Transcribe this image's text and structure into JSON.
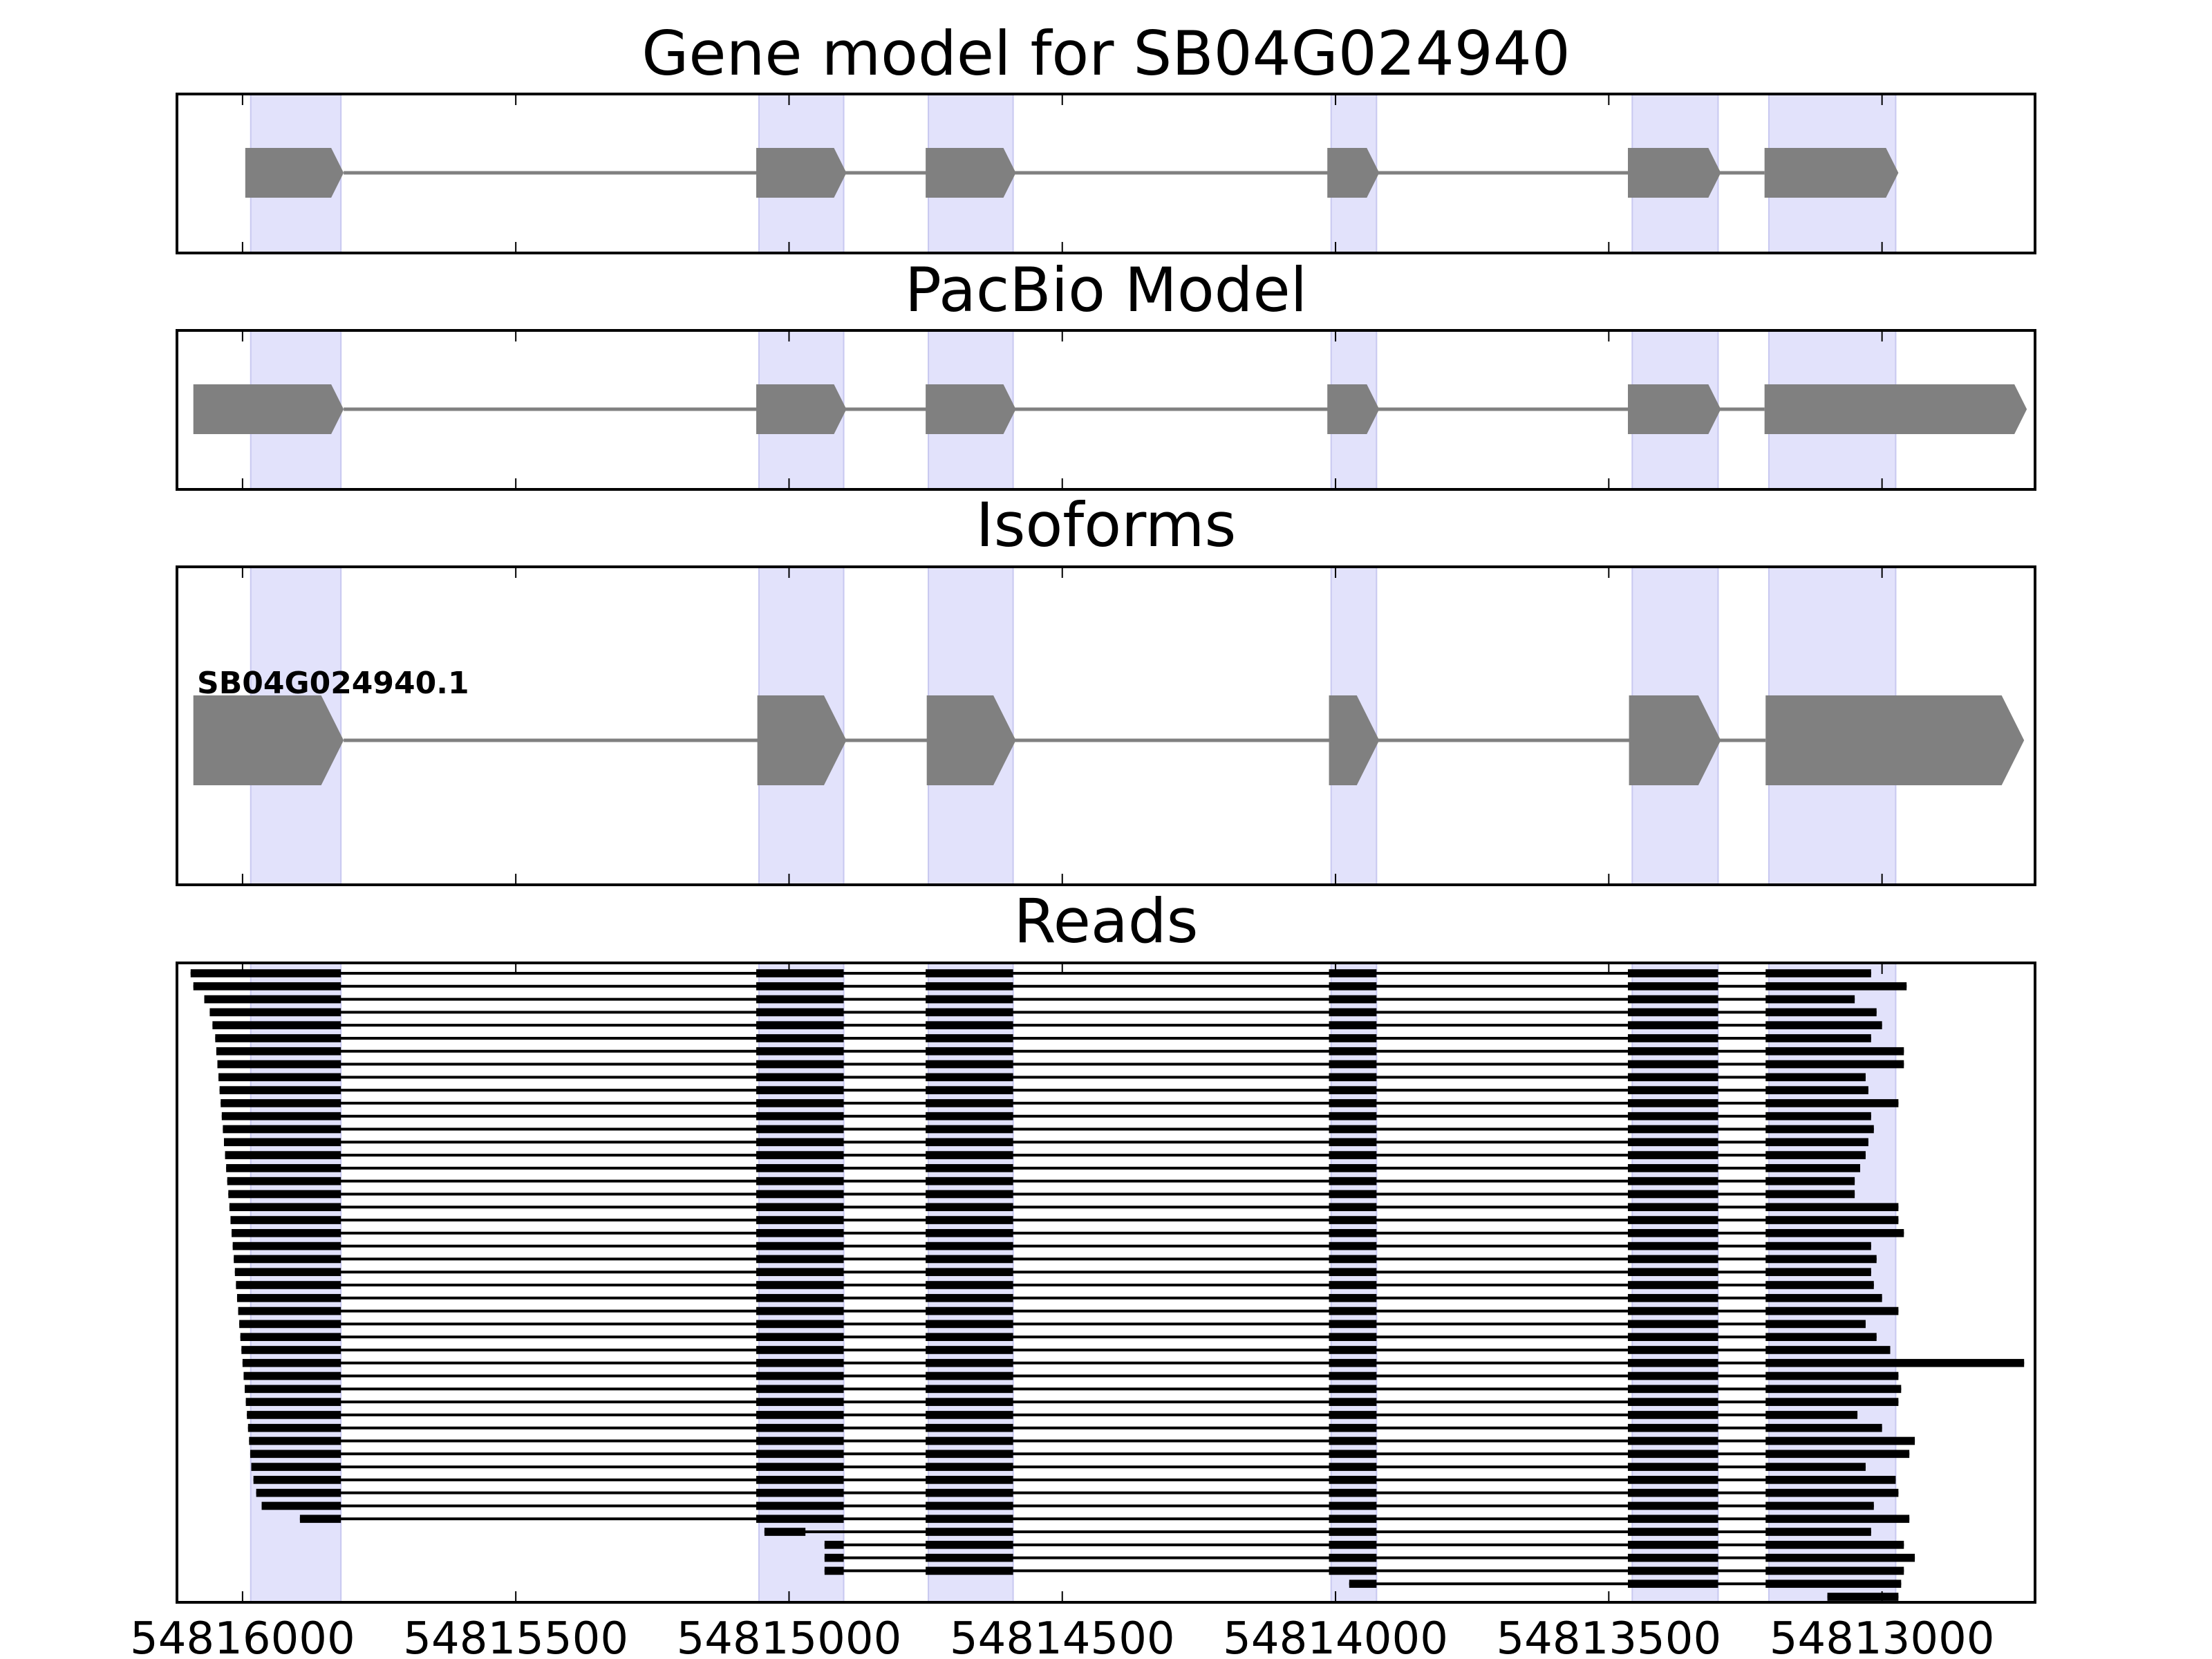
{
  "chart_data": {
    "type": "gene-track",
    "colors": {
      "exon_shade": "#e2e2fb",
      "feature": "#808080",
      "read": "#000000",
      "frame": "#000000"
    },
    "x_axis": {
      "reversed": true,
      "range": [
        54816120,
        54812720
      ],
      "ticks": [
        54816000,
        54815500,
        54815000,
        54814500,
        54814000,
        54813500,
        54813000
      ],
      "tick_labels": [
        "54816000",
        "54815500",
        "54815000",
        "54814500",
        "54814000",
        "54813500",
        "54813000"
      ]
    },
    "highlight_exons": [
      [
        54815985,
        54815820
      ],
      [
        54815055,
        54814900
      ],
      [
        54814745,
        54814590
      ],
      [
        54814008,
        54813925
      ],
      [
        54813457,
        54813300
      ],
      [
        54813207,
        54812975
      ]
    ],
    "panels": [
      {
        "id": "gene-model",
        "title": "Gene model for SB04G024940",
        "features": [
          [
            54815995,
            54815815
          ],
          [
            54815060,
            54814895
          ],
          [
            54814750,
            54814585
          ],
          [
            54814015,
            54813920
          ],
          [
            54813465,
            54813295
          ],
          [
            54813215,
            54812970
          ]
        ]
      },
      {
        "id": "pacbio-model",
        "title": "PacBio Model",
        "features": [
          [
            54816090,
            54815815
          ],
          [
            54815060,
            54814895
          ],
          [
            54814750,
            54814585
          ],
          [
            54814015,
            54813920
          ],
          [
            54813465,
            54813295
          ],
          [
            54813215,
            54812735
          ]
        ]
      },
      {
        "id": "isoforms",
        "title": "Isoforms",
        "isoform_label": "SB04G024940.1",
        "features": [
          [
            54816090,
            54815815
          ],
          [
            54815058,
            54814895
          ],
          [
            54814748,
            54814585
          ],
          [
            54814012,
            54813920
          ],
          [
            54813463,
            54813295
          ],
          [
            54813213,
            54812740
          ]
        ]
      }
    ],
    "reads": {
      "title": "Reads",
      "full_exons": [
        [
          54815060,
          54814900
        ],
        [
          54814750,
          54814590
        ],
        [
          54814012,
          54813925
        ],
        [
          54813465,
          54813300
        ]
      ],
      "first_exon_end": 54815820,
      "last_exon_start": 54813213,
      "starts": [
        54816095,
        54816090,
        54816070,
        54816060,
        54816055,
        54816050,
        54816048,
        54816046,
        54816044,
        54816042,
        54816040,
        54816038,
        54816036,
        54816034,
        54816032,
        54816030,
        54816028,
        54816026,
        54816024,
        54816022,
        54816020,
        54816018,
        54816016,
        54816014,
        54816012,
        54816010,
        54816008,
        54816006,
        54816004,
        54816002,
        54816000,
        54815998,
        54815996,
        54815994,
        54815992,
        54815990,
        54815988,
        54815986,
        54815984,
        54815980,
        54815975,
        54815965,
        54815895
      ],
      "ends": [
        54813020,
        54812955,
        54813050,
        54813010,
        54813000,
        54813020,
        54812960,
        54812960,
        54813030,
        54813025,
        54812970,
        54813020,
        54813015,
        54813025,
        54813030,
        54813040,
        54813050,
        54813050,
        54812970,
        54812970,
        54812960,
        54813020,
        54813010,
        54813020,
        54813015,
        54813000,
        54812970,
        54813030,
        54813010,
        54812985,
        54812740,
        54812970,
        54812965,
        54812970,
        54813045,
        54813000,
        54812940,
        54812950,
        54813030,
        54812975,
        54812970,
        54813015,
        54812950
      ],
      "partial": [
        {
          "fragments": [
            [
              54815045,
              54814970
            ],
            [
              54814750,
              54814590
            ],
            [
              54814012,
              54813925
            ],
            [
              54813465,
              54813300
            ],
            [
              54813213,
              54813020
            ]
          ]
        },
        {
          "fragments": [
            [
              54814935,
              54814900
            ],
            [
              54814750,
              54814590
            ],
            [
              54814012,
              54813925
            ],
            [
              54813465,
              54813300
            ],
            [
              54813213,
              54812960
            ]
          ]
        },
        {
          "fragments": [
            [
              54814935,
              54814900
            ],
            [
              54814750,
              54814590
            ],
            [
              54814012,
              54813925
            ],
            [
              54813465,
              54813300
            ],
            [
              54813213,
              54812940
            ]
          ]
        },
        {
          "fragments": [
            [
              54814935,
              54814900
            ],
            [
              54814750,
              54814590
            ],
            [
              54814012,
              54813925
            ],
            [
              54813465,
              54813300
            ],
            [
              54813213,
              54812960
            ]
          ]
        },
        {
          "fragments": [
            [
              54813975,
              54813925
            ],
            [
              54813465,
              54813300
            ],
            [
              54813213,
              54812965
            ]
          ]
        },
        {
          "fragments": [
            [
              54813100,
              54812970
            ]
          ]
        }
      ]
    }
  }
}
